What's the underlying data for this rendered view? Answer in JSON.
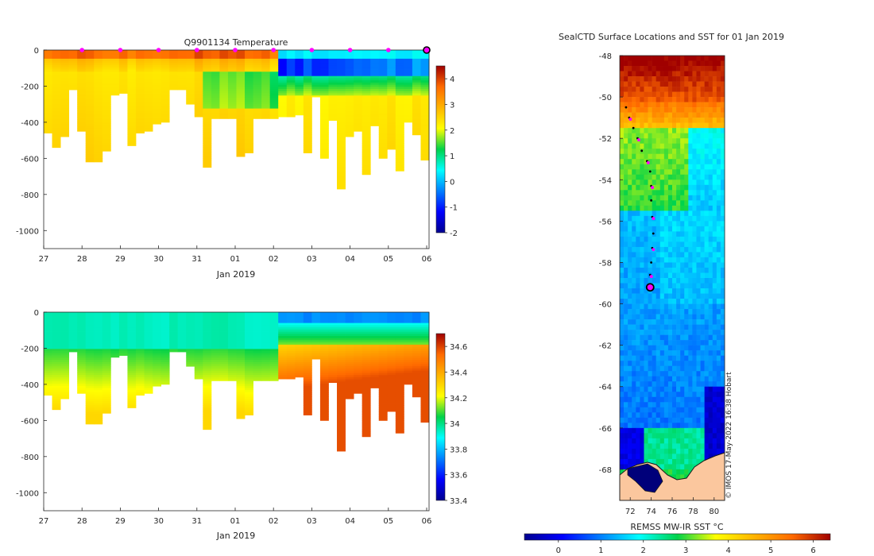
{
  "panels": {
    "temperature": {
      "title": "Q9901134  Temperature",
      "xlabel": "Jan 2019",
      "colorbar_ticks": [
        "4",
        "3",
        "2",
        "1",
        "0",
        "-1",
        "-2"
      ]
    },
    "salinity": {
      "xlabel": "Jan 2019",
      "colorbar_ticks": [
        "34.6",
        "34.4",
        "34.2",
        "34",
        "33.8",
        "33.6",
        "33.4"
      ]
    },
    "map": {
      "title": "SealCTD Surface Locations and SST for 01 Jan 2019",
      "colorbar_label": "REMSS MW-IR SST °C",
      "credit": "© IMOS 17-May-2022 16:38 Hobart"
    }
  },
  "chart_data": [
    {
      "type": "heatmap",
      "title": "Q9901134  Temperature",
      "xlabel": "Jan 2019",
      "ylabel": "",
      "x_ticks": [
        "27",
        "28",
        "29",
        "30",
        "31",
        "01",
        "02",
        "03",
        "04",
        "05",
        "06"
      ],
      "y_ticks": [
        "0",
        "-200",
        "-400",
        "-600",
        "-800",
        "-1000"
      ],
      "ylim": [
        -1100,
        0
      ],
      "colorbar_range": [
        -2,
        4.5
      ],
      "colorbar_ticks": [
        4,
        3,
        2,
        1,
        0,
        -1,
        -2
      ],
      "profile_max_depths": [
        460,
        540,
        480,
        220,
        450,
        620,
        620,
        560,
        250,
        240,
        530,
        460,
        450,
        410,
        400,
        220,
        220,
        300,
        370,
        650,
        380,
        380,
        380,
        590,
        570,
        380,
        380,
        380,
        370,
        370,
        360,
        570,
        260,
        600,
        390,
        770,
        480,
        450,
        690,
        420,
        600,
        550,
        670,
        400,
        470,
        610
      ],
      "profile_markers_days": [
        1,
        2,
        3,
        4,
        5,
        6,
        7,
        8,
        9,
        10
      ]
    },
    {
      "type": "heatmap",
      "title": "",
      "xlabel": "Jan 2019",
      "ylabel": "",
      "x_ticks": [
        "27",
        "28",
        "29",
        "30",
        "31",
        "01",
        "02",
        "03",
        "04",
        "05",
        "06"
      ],
      "y_ticks": [
        "0",
        "-200",
        "-400",
        "-600",
        "-800",
        "-1000"
      ],
      "ylim": [
        -1100,
        0
      ],
      "colorbar_range": [
        33.4,
        34.7
      ],
      "colorbar_ticks": [
        34.6,
        34.4,
        34.2,
        34,
        33.8,
        33.6,
        33.4
      ]
    },
    {
      "type": "heatmap",
      "title": "SealCTD Surface Locations and SST for 01 Jan 2019",
      "xlabel": "REMSS MW-IR SST °C",
      "x_ticks": [
        "72",
        "74",
        "76",
        "78",
        "80"
      ],
      "y_ticks": [
        "-48",
        "-50",
        "-52",
        "-54",
        "-56",
        "-58",
        "-60",
        "-62",
        "-64",
        "-66",
        "-68"
      ],
      "xlim": [
        71,
        81
      ],
      "ylim": [
        -69.5,
        -48
      ],
      "colorbar_range": [
        -0.8,
        6.4
      ],
      "colorbar_ticks": [
        0,
        1,
        2,
        3,
        4,
        5,
        6
      ],
      "track": [
        {
          "lon": 71.6,
          "lat": -50.5
        },
        {
          "lon": 71.9,
          "lat": -51.0
        },
        {
          "lon": 72.3,
          "lat": -51.5
        },
        {
          "lon": 72.7,
          "lat": -52.0
        },
        {
          "lon": 73.1,
          "lat": -52.6
        },
        {
          "lon": 73.6,
          "lat": -53.1
        },
        {
          "lon": 73.9,
          "lat": -53.6
        },
        {
          "lon": 74.0,
          "lat": -54.3
        },
        {
          "lon": 74.0,
          "lat": -55.0
        },
        {
          "lon": 74.1,
          "lat": -55.8
        },
        {
          "lon": 74.2,
          "lat": -56.6
        },
        {
          "lon": 74.1,
          "lat": -57.3
        },
        {
          "lon": 74.0,
          "lat": -58.0
        },
        {
          "lon": 73.9,
          "lat": -58.6
        },
        {
          "lon": 73.9,
          "lat": -59.2
        }
      ],
      "current_position": {
        "lon": 73.9,
        "lat": -59.2
      }
    }
  ]
}
